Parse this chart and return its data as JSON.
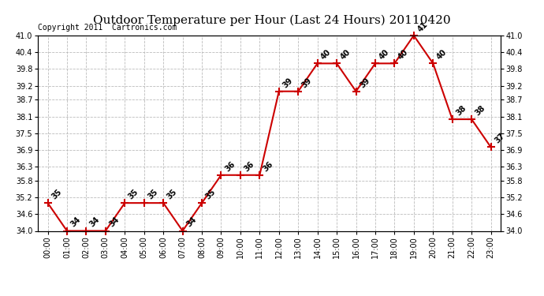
{
  "title": "Outdoor Temperature per Hour (Last 24 Hours) 20110420",
  "copyright": "Copyright 2011  Cartronics.com",
  "hours": [
    "00:00",
    "01:00",
    "02:00",
    "03:00",
    "04:00",
    "05:00",
    "06:00",
    "07:00",
    "08:00",
    "09:00",
    "10:00",
    "11:00",
    "12:00",
    "13:00",
    "14:00",
    "15:00",
    "16:00",
    "17:00",
    "18:00",
    "19:00",
    "20:00",
    "21:00",
    "22:00",
    "23:00"
  ],
  "temperatures": [
    35,
    34,
    34,
    34,
    35,
    35,
    35,
    34,
    35,
    36,
    36,
    36,
    39,
    39,
    40,
    40,
    39,
    40,
    40,
    41,
    40,
    38,
    38,
    37
  ],
  "line_color": "#cc0000",
  "marker": "+",
  "marker_size": 7,
  "marker_linewidth": 1.5,
  "line_width": 1.5,
  "ylim_min": 34.0,
  "ylim_max": 41.0,
  "yticks": [
    34.0,
    34.6,
    35.2,
    35.8,
    36.3,
    36.9,
    37.5,
    38.1,
    38.7,
    39.2,
    39.8,
    40.4,
    41.0
  ],
  "bg_color": "#ffffff",
  "grid_color": "#bbbbbb",
  "title_fontsize": 11,
  "label_fontsize": 7,
  "annot_fontsize": 7,
  "copyright_fontsize": 7
}
